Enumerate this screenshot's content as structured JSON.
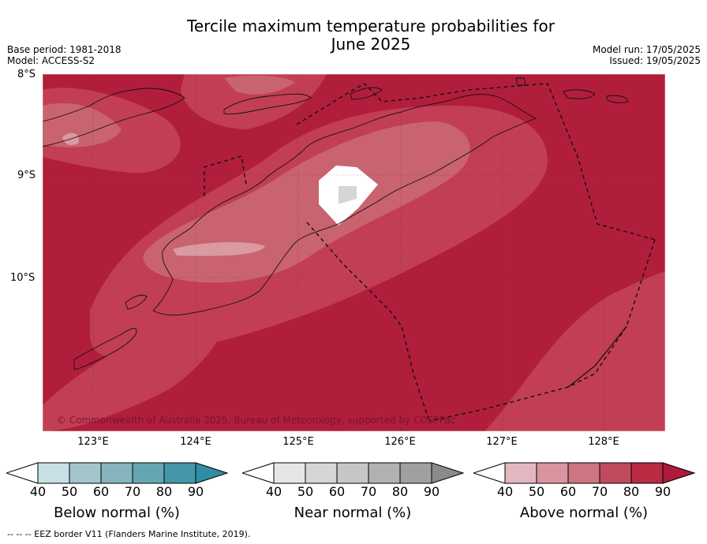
{
  "title_line1": "Tercile maximum temperature probabilities for",
  "title_line2": "June 2025",
  "base_period": "Base period: 1981-2018",
  "model": "Model: ACCESS-S2",
  "model_run": "Model run: 17/05/2025",
  "issued": "Issued: 19/05/2025",
  "lat_labels": [
    "8°S",
    "9°S",
    "10°S"
  ],
  "lon_labels": [
    "123°E",
    "124°E",
    "125°E",
    "126°E",
    "127°E",
    "128°E"
  ],
  "copyright": "© Commonwealth of Australia 2025, Bureau of Meteorology, supported by COSPPac",
  "footnote": "--  --  -- EEZ border V11 (Flanders Marine Institute, 2019).",
  "colorbars": [
    {
      "title": "Below normal (%)",
      "ticks": [
        "40",
        "50",
        "60",
        "70",
        "80",
        "90"
      ],
      "colors": [
        "#c6e0e6",
        "#a3c6cc",
        "#87b5bf",
        "#66a6b3",
        "#4397a9",
        "#2e8ea3"
      ]
    },
    {
      "title": "Near normal (%)",
      "ticks": [
        "40",
        "50",
        "60",
        "70",
        "80",
        "90"
      ],
      "colors": [
        "#e6e6e6",
        "#d6d6d6",
        "#c6c6c6",
        "#b1b1b1",
        "#a0a0a0",
        "#8a8a8a"
      ]
    },
    {
      "title": "Above normal (%)",
      "ticks": [
        "40",
        "50",
        "60",
        "70",
        "80",
        "90"
      ],
      "colors": [
        "#e2b7c0",
        "#d9949f",
        "#cd7580",
        "#c14b5d",
        "#b82b43",
        "#ae1a3a"
      ]
    }
  ],
  "colors": {
    "above_80": "#b11e3c",
    "above_70": "#c23e55",
    "above_60": "#c9636f",
    "above_50": "#d99aa2",
    "white_area": "#ffffff",
    "near_normal_patch": "#d6d6d6"
  }
}
